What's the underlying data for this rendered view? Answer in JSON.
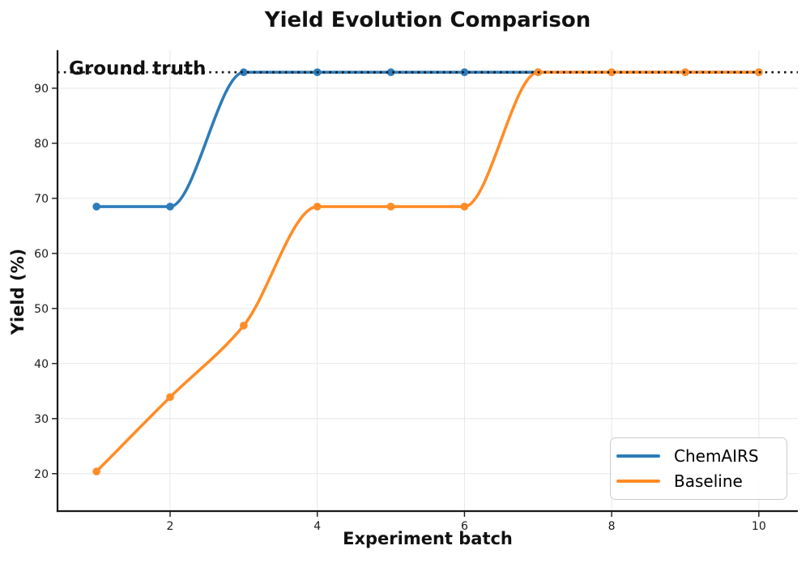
{
  "chart_data": {
    "type": "line",
    "title": "Yield Evolution Comparison",
    "xlabel": "Experiment batch",
    "ylabel": "Yield (%)",
    "x": [
      1,
      2,
      3,
      4,
      5,
      6,
      7,
      8,
      9,
      10
    ],
    "series": [
      {
        "name": "ChemAIRS",
        "color": "#2d7cb9",
        "values": [
          68.5,
          68.5,
          92.9,
          92.9,
          92.9,
          92.9,
          92.9,
          92.9,
          92.9,
          92.9
        ]
      },
      {
        "name": "Baseline",
        "color": "#ff8c26",
        "values": [
          20.4,
          33.9,
          46.9,
          68.5,
          68.5,
          68.5,
          92.9,
          92.9,
          92.9,
          92.9
        ]
      }
    ],
    "ground_truth": {
      "label": "Ground truth",
      "value": 92.9,
      "color": "#151515"
    },
    "x_ticks": [
      2,
      4,
      6,
      8,
      10
    ],
    "y_ticks": [
      20,
      30,
      40,
      50,
      60,
      70,
      80,
      90
    ],
    "xlim": [
      0.47,
      10.53
    ],
    "ylim": [
      13.2,
      96.9
    ],
    "grid": true,
    "grid_color": "#e7e7e7",
    "legend_position": "lower right",
    "line_style": "smooth"
  }
}
